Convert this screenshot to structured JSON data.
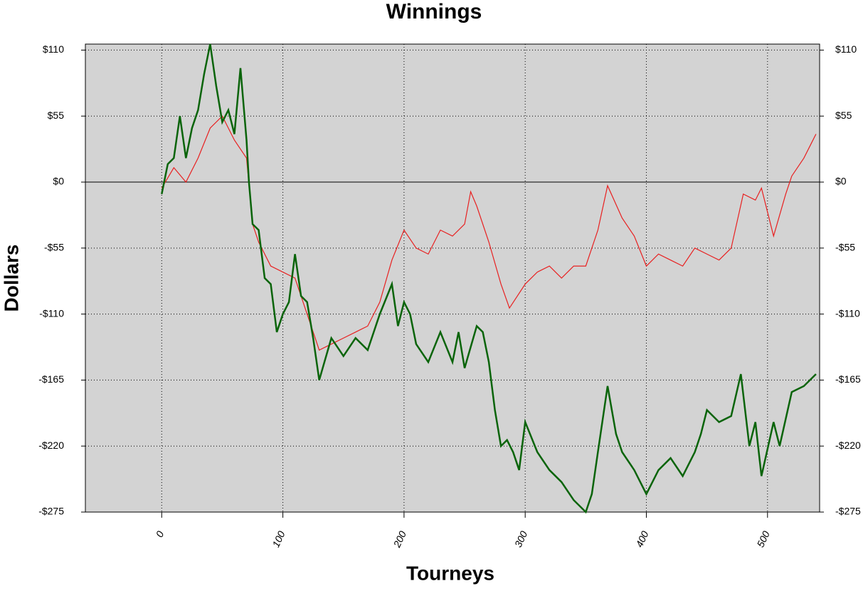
{
  "chart_data": {
    "type": "line",
    "title": "Winnings",
    "x_label": "Tourneys",
    "y_label": "Dollars",
    "xlim": [
      -63,
      543
    ],
    "ylim": [
      -275,
      115
    ],
    "xticks": [
      0,
      100,
      200,
      300,
      400,
      500
    ],
    "yticks": [
      {
        "value": 110,
        "label": "$110"
      },
      {
        "value": 55,
        "label": "$55"
      },
      {
        "value": 0,
        "label": "$0"
      },
      {
        "value": -55,
        "label": "-$55"
      },
      {
        "value": -110,
        "label": "-$110"
      },
      {
        "value": -165,
        "label": "-$165"
      },
      {
        "value": -220,
        "label": "-$220"
      },
      {
        "value": -275,
        "label": "-$275"
      }
    ],
    "grid": true,
    "series": [
      {
        "color": "#e82020",
        "x": [
          0,
          10,
          20,
          30,
          40,
          50,
          60,
          70,
          75,
          80,
          90,
          100,
          110,
          120,
          130,
          140,
          150,
          160,
          170,
          180,
          190,
          200,
          210,
          220,
          230,
          240,
          250,
          255,
          260,
          270,
          280,
          287,
          300,
          310,
          320,
          330,
          340,
          350,
          360,
          368,
          380,
          390,
          400,
          410,
          420,
          430,
          440,
          450,
          460,
          470,
          480,
          490,
          495,
          505,
          515,
          520,
          530,
          540
        ],
        "values": [
          -5,
          12,
          0,
          20,
          45,
          55,
          35,
          20,
          -35,
          -50,
          -70,
          -75,
          -80,
          -110,
          -140,
          -135,
          -130,
          -125,
          -120,
          -100,
          -65,
          -40,
          -55,
          -60,
          -40,
          -45,
          -35,
          -8,
          -20,
          -50,
          -85,
          -105,
          -85,
          -75,
          -70,
          -80,
          -70,
          -70,
          -40,
          -3,
          -30,
          -45,
          -70,
          -60,
          -65,
          -70,
          -55,
          -60,
          -65,
          -55,
          -10,
          -15,
          -5,
          -45,
          -10,
          5,
          20,
          40
        ]
      },
      {
        "color": "#0a640a",
        "x": [
          0,
          5,
          10,
          15,
          20,
          25,
          30,
          35,
          40,
          45,
          50,
          55,
          60,
          65,
          70,
          72,
          75,
          80,
          85,
          90,
          95,
          100,
          105,
          110,
          115,
          120,
          125,
          130,
          140,
          150,
          160,
          170,
          180,
          190,
          195,
          200,
          205,
          210,
          220,
          230,
          240,
          245,
          250,
          260,
          265,
          270,
          275,
          280,
          285,
          290,
          295,
          300,
          310,
          320,
          330,
          340,
          350,
          355,
          360,
          368,
          375,
          380,
          390,
          400,
          410,
          420,
          430,
          440,
          445,
          450,
          460,
          470,
          478,
          485,
          490,
          495,
          505,
          510,
          520,
          530,
          540
        ],
        "values": [
          -10,
          15,
          20,
          55,
          20,
          45,
          60,
          90,
          115,
          80,
          50,
          60,
          40,
          95,
          35,
          0,
          -35,
          -40,
          -80,
          -85,
          -125,
          -110,
          -100,
          -60,
          -95,
          -100,
          -130,
          -165,
          -130,
          -145,
          -130,
          -140,
          -110,
          -85,
          -120,
          -100,
          -110,
          -135,
          -150,
          -125,
          -150,
          -125,
          -155,
          -120,
          -125,
          -150,
          -190,
          -220,
          -215,
          -225,
          -240,
          -200,
          -225,
          -240,
          -250,
          -265,
          -275,
          -260,
          -225,
          -170,
          -210,
          -225,
          -240,
          -260,
          -240,
          -230,
          -245,
          -225,
          -210,
          -190,
          -200,
          -195,
          -160,
          -220,
          -200,
          -245,
          -200,
          -220,
          -175,
          -170,
          -160
        ]
      }
    ]
  }
}
